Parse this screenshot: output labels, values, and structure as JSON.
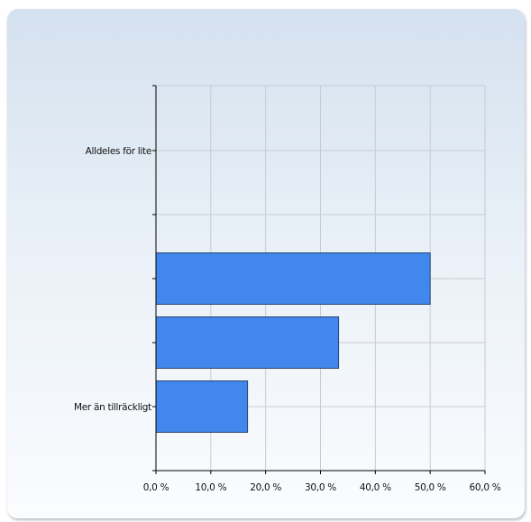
{
  "chart_data": {
    "type": "bar",
    "orientation": "horizontal",
    "title": "",
    "xlabel": "",
    "ylabel": "",
    "categories": [
      "Alldeles för lite",
      "",
      "",
      "Mer än tillräckligt"
    ],
    "values": [
      0,
      50,
      33.3,
      16.7
    ],
    "x_ticks": [
      "0,0 %",
      "10,0 %",
      "20,0 %",
      "30,0 %",
      "40,0 %",
      "50,0 %",
      "60,0 %"
    ],
    "xlim": [
      0,
      60
    ],
    "grid": true,
    "bar_color": "#4287ed"
  }
}
